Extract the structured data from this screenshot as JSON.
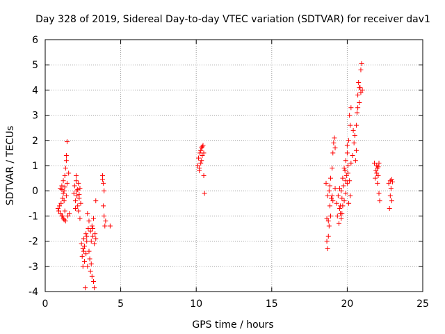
{
  "chart_data": {
    "type": "scatter",
    "title": "Day 328 of 2019, Sidereal Day-to-day VTEC variation (SDTVAR) for receiver dav1",
    "xlabel": "GPS time / hours",
    "ylabel": "SDTVAR / TECUs",
    "xlim": [
      0,
      25
    ],
    "ylim": [
      -4,
      6
    ],
    "xticks": [
      0,
      5,
      10,
      15,
      20,
      25
    ],
    "yticks": [
      -4,
      -3,
      -2,
      -1,
      0,
      1,
      2,
      3,
      4,
      5,
      6
    ],
    "grid": true,
    "marker": "+",
    "color": "#ff0000",
    "series": [
      {
        "name": "SDTVAR",
        "points": [
          [
            0.85,
            -0.7
          ],
          [
            0.9,
            -0.8
          ],
          [
            0.95,
            -0.6
          ],
          [
            1.0,
            -0.9
          ],
          [
            1.0,
            0.1
          ],
          [
            1.05,
            -0.5
          ],
          [
            1.1,
            -1.0
          ],
          [
            1.1,
            0.2
          ],
          [
            1.15,
            -0.3
          ],
          [
            1.2,
            0.4
          ],
          [
            1.2,
            -1.1
          ],
          [
            1.25,
            0.0
          ],
          [
            1.3,
            -0.8
          ],
          [
            1.3,
            0.6
          ],
          [
            1.35,
            -1.2
          ],
          [
            1.4,
            1.2
          ],
          [
            1.4,
            -0.2
          ],
          [
            1.45,
            1.95
          ],
          [
            1.45,
            0.3
          ],
          [
            1.5,
            -1.0
          ],
          [
            1.55,
            0.7
          ],
          [
            1.6,
            -0.9
          ],
          [
            1.1,
            0.05
          ],
          [
            1.2,
            -0.1
          ],
          [
            1.25,
            -0.4
          ],
          [
            1.3,
            0.15
          ],
          [
            1.35,
            0.9
          ],
          [
            1.4,
            1.4
          ],
          [
            1.15,
            -1.0
          ],
          [
            1.25,
            -1.15
          ],
          [
            1.9,
            -0.1
          ],
          [
            1.95,
            0.2
          ],
          [
            2.0,
            -0.4
          ],
          [
            2.05,
            0.6
          ],
          [
            2.1,
            -0.2
          ],
          [
            2.1,
            0.0
          ],
          [
            2.15,
            -0.6
          ],
          [
            2.2,
            0.3
          ],
          [
            2.2,
            -0.8
          ],
          [
            2.25,
            -0.3
          ],
          [
            2.3,
            0.1
          ],
          [
            2.3,
            -1.1
          ],
          [
            2.35,
            -0.5
          ],
          [
            2.0,
            -0.7
          ],
          [
            2.05,
            0.4
          ],
          [
            2.15,
            0.05
          ],
          [
            2.25,
            -0.15
          ],
          [
            2.4,
            -2.1
          ],
          [
            2.45,
            -2.6
          ],
          [
            2.5,
            -3.0
          ],
          [
            2.5,
            -2.3
          ],
          [
            2.55,
            -1.9
          ],
          [
            2.6,
            -2.8
          ],
          [
            2.6,
            -2.2
          ],
          [
            2.65,
            -3.85
          ],
          [
            2.7,
            -1.7
          ],
          [
            2.7,
            -2.5
          ],
          [
            2.75,
            -2.0
          ],
          [
            2.8,
            -0.9
          ],
          [
            2.8,
            -3.0
          ],
          [
            2.85,
            -1.5
          ],
          [
            2.9,
            -2.4
          ],
          [
            2.9,
            -1.2
          ],
          [
            2.95,
            -2.7
          ],
          [
            3.0,
            -1.6
          ],
          [
            3.0,
            -3.2
          ],
          [
            3.05,
            -2.0
          ],
          [
            3.1,
            -1.4
          ],
          [
            3.1,
            -3.4
          ],
          [
            3.15,
            -1.8
          ],
          [
            3.2,
            -3.6
          ],
          [
            3.2,
            -1.1
          ],
          [
            3.25,
            -2.1
          ],
          [
            3.25,
            -3.85
          ],
          [
            3.3,
            -1.7
          ],
          [
            3.35,
            -0.4
          ],
          [
            3.35,
            -1.9
          ],
          [
            2.55,
            -2.4
          ],
          [
            2.75,
            -1.8
          ],
          [
            3.05,
            -2.9
          ],
          [
            3.15,
            -1.5
          ],
          [
            3.8,
            0.6
          ],
          [
            3.85,
            0.3
          ],
          [
            3.85,
            -0.6
          ],
          [
            3.9,
            0.0
          ],
          [
            3.9,
            -1.0
          ],
          [
            3.95,
            -1.4
          ],
          [
            4.0,
            -1.2
          ],
          [
            4.3,
            -1.4
          ],
          [
            3.8,
            0.45
          ],
          [
            10.1,
            1.0
          ],
          [
            10.15,
            1.3
          ],
          [
            10.2,
            0.8
          ],
          [
            10.25,
            1.5
          ],
          [
            10.3,
            1.6
          ],
          [
            10.35,
            1.2
          ],
          [
            10.4,
            1.75
          ],
          [
            10.45,
            1.8
          ],
          [
            10.5,
            0.6
          ],
          [
            10.5,
            1.5
          ],
          [
            10.55,
            -0.1
          ],
          [
            10.3,
            1.1
          ],
          [
            10.4,
            1.4
          ],
          [
            10.2,
            0.9
          ],
          [
            10.35,
            1.7
          ],
          [
            18.6,
            0.3
          ],
          [
            18.65,
            -1.1
          ],
          [
            18.7,
            -2.3
          ],
          [
            18.7,
            -0.2
          ],
          [
            18.75,
            -1.8
          ],
          [
            18.8,
            0.0
          ],
          [
            18.8,
            -1.4
          ],
          [
            18.85,
            -0.6
          ],
          [
            18.9,
            -1.0
          ],
          [
            18.9,
            0.5
          ],
          [
            18.95,
            -0.3
          ],
          [
            19.0,
            0.9
          ],
          [
            19.05,
            1.5
          ],
          [
            19.05,
            -0.4
          ],
          [
            19.1,
            1.9
          ],
          [
            19.15,
            2.1
          ],
          [
            19.2,
            1.7
          ],
          [
            19.2,
            0.1
          ],
          [
            18.65,
            -2.0
          ],
          [
            18.75,
            -1.2
          ],
          [
            18.85,
            0.2
          ],
          [
            19.0,
            -0.2
          ],
          [
            19.3,
            -0.5
          ],
          [
            19.35,
            -1.0
          ],
          [
            19.4,
            -0.2
          ],
          [
            19.45,
            -1.3
          ],
          [
            19.5,
            -0.7
          ],
          [
            19.5,
            0.1
          ],
          [
            19.55,
            -0.9
          ],
          [
            19.6,
            0.0
          ],
          [
            19.6,
            -1.1
          ],
          [
            19.65,
            -0.3
          ],
          [
            19.7,
            0.5
          ],
          [
            19.7,
            -0.6
          ],
          [
            19.75,
            0.2
          ],
          [
            19.8,
            -0.4
          ],
          [
            19.85,
            0.8
          ],
          [
            19.9,
            1.2
          ],
          [
            19.9,
            -0.1
          ],
          [
            19.95,
            0.6
          ],
          [
            20.0,
            1.5
          ],
          [
            20.0,
            0.3
          ],
          [
            20.05,
            1.0
          ],
          [
            20.1,
            2.0
          ],
          [
            20.1,
            -0.5
          ],
          [
            20.15,
            3.0
          ],
          [
            20.15,
            0.4
          ],
          [
            20.2,
            2.6
          ],
          [
            20.2,
            -0.2
          ],
          [
            20.25,
            3.3
          ],
          [
            20.25,
            1.1
          ],
          [
            19.8,
            0.9
          ],
          [
            19.9,
            0.4
          ],
          [
            20.0,
            1.8
          ],
          [
            20.05,
            0.7
          ],
          [
            19.55,
            -0.6
          ],
          [
            19.65,
            -0.9
          ],
          [
            20.35,
            1.4
          ],
          [
            20.4,
            2.4
          ],
          [
            20.45,
            1.9
          ],
          [
            20.5,
            2.2
          ],
          [
            20.55,
            1.2
          ],
          [
            20.6,
            2.6
          ],
          [
            20.65,
            3.1
          ],
          [
            20.7,
            3.8
          ],
          [
            20.75,
            4.3
          ],
          [
            20.8,
            3.5
          ],
          [
            20.85,
            4.1
          ],
          [
            20.9,
            4.8
          ],
          [
            20.95,
            5.05
          ],
          [
            21.0,
            4.0
          ],
          [
            20.7,
            3.3
          ],
          [
            20.8,
            4.1
          ],
          [
            20.9,
            3.9
          ],
          [
            20.6,
            1.6
          ],
          [
            21.8,
            1.1
          ],
          [
            21.85,
            0.5
          ],
          [
            21.9,
            0.8
          ],
          [
            21.95,
            1.0
          ],
          [
            22.0,
            0.3
          ],
          [
            22.0,
            0.9
          ],
          [
            22.05,
            0.6
          ],
          [
            22.1,
            -0.1
          ],
          [
            22.1,
            1.1
          ],
          [
            22.15,
            -0.4
          ],
          [
            21.95,
            0.7
          ],
          [
            22.05,
            0.95
          ],
          [
            22.75,
            0.3
          ],
          [
            22.8,
            -0.7
          ],
          [
            22.85,
            0.4
          ],
          [
            22.9,
            0.1
          ],
          [
            22.95,
            -0.4
          ],
          [
            23.0,
            0.35
          ],
          [
            22.85,
            -0.2
          ],
          [
            22.95,
            0.45
          ]
        ]
      }
    ]
  }
}
